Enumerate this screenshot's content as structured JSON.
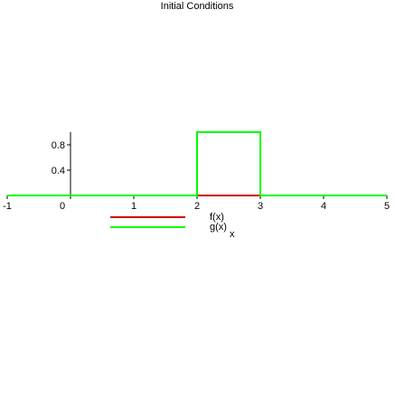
{
  "chart_data": {
    "type": "line",
    "title": "Initial Conditions",
    "x_label": "x",
    "xlim": [
      -1,
      5
    ],
    "ylim": [
      0,
      1
    ],
    "xticks": [
      -1,
      0,
      1,
      2,
      3,
      4,
      5
    ],
    "yticks": [
      0.4,
      0.8
    ],
    "series": [
      {
        "name": "f(x)",
        "color": "#cc0000",
        "x": [
          -1,
          5
        ],
        "values": [
          0,
          0
        ]
      },
      {
        "name": "g(x)",
        "color": "#00ff00",
        "x": [
          -1,
          2,
          2,
          3,
          3,
          5
        ],
        "values": [
          0,
          0,
          1,
          1,
          0,
          0
        ]
      }
    ]
  }
}
